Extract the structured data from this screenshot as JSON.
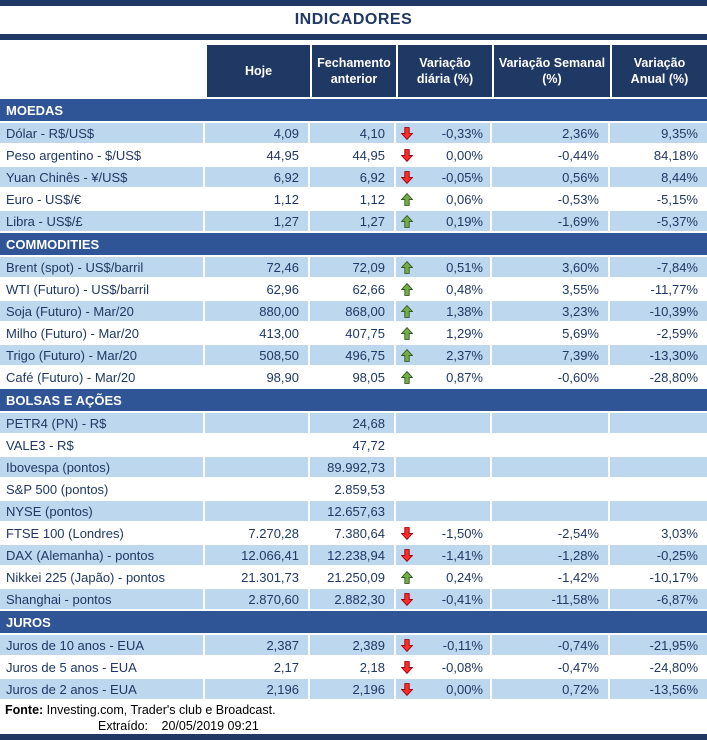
{
  "title": "INDICADORES",
  "columns": {
    "hoje": "Hoje",
    "fechamento": "Fechamento anterior",
    "variacao_diaria": "Variação diária (%)",
    "variacao_semanal": "Variação Semanal (%)",
    "variacao_anual": "Variação Anual (%)"
  },
  "sections": [
    {
      "name": "MOEDAS",
      "rows": [
        {
          "label": "Dólar - R$/US$",
          "hoje": "4,09",
          "fechamento": "4,10",
          "arrow": "down",
          "diaria": "-0,33%",
          "semanal": "2,36%",
          "anual": "9,35%"
        },
        {
          "label": "Peso argentino - $/US$",
          "hoje": "44,95",
          "fechamento": "44,95",
          "arrow": "down",
          "diaria": "0,00%",
          "semanal": "-0,44%",
          "anual": "84,18%"
        },
        {
          "label": "Yuan Chinês - ¥/US$",
          "hoje": "6,92",
          "fechamento": "6,92",
          "arrow": "down",
          "diaria": "-0,05%",
          "semanal": "0,56%",
          "anual": "8,44%"
        },
        {
          "label": "Euro - US$/€",
          "hoje": "1,12",
          "fechamento": "1,12",
          "arrow": "up",
          "diaria": "0,06%",
          "semanal": "-0,53%",
          "anual": "-5,15%"
        },
        {
          "label": "Libra - US$/£",
          "hoje": "1,27",
          "fechamento": "1,27",
          "arrow": "up",
          "diaria": "0,19%",
          "semanal": "-1,69%",
          "anual": "-5,37%"
        }
      ]
    },
    {
      "name": "COMMODITIES",
      "rows": [
        {
          "label": "Brent (spot) - US$/barril",
          "hoje": "72,46",
          "fechamento": "72,09",
          "arrow": "up",
          "diaria": "0,51%",
          "semanal": "3,60%",
          "anual": "-7,84%"
        },
        {
          "label": "WTI (Futuro) - US$/barril",
          "hoje": "62,96",
          "fechamento": "62,66",
          "arrow": "up",
          "diaria": "0,48%",
          "semanal": "3,55%",
          "anual": "-11,77%"
        },
        {
          "label": "Soja (Futuro) - Mar/20",
          "hoje": "880,00",
          "fechamento": "868,00",
          "arrow": "up",
          "diaria": "1,38%",
          "semanal": "3,23%",
          "anual": "-10,39%"
        },
        {
          "label": "Milho (Futuro) - Mar/20",
          "hoje": "413,00",
          "fechamento": "407,75",
          "arrow": "up",
          "diaria": "1,29%",
          "semanal": "5,69%",
          "anual": "-2,59%"
        },
        {
          "label": "Trigo (Futuro) - Mar/20",
          "hoje": "508,50",
          "fechamento": "496,75",
          "arrow": "up",
          "diaria": "2,37%",
          "semanal": "7,39%",
          "anual": "-13,30%"
        },
        {
          "label": "Café (Futuro) - Mar/20",
          "hoje": "98,90",
          "fechamento": "98,05",
          "arrow": "up",
          "diaria": "0,87%",
          "semanal": "-0,60%",
          "anual": "-28,80%"
        }
      ]
    },
    {
      "name": "BOLSAS E AÇÕES",
      "rows": [
        {
          "label": "PETR4 (PN) - R$",
          "hoje": "",
          "fechamento": "24,68",
          "arrow": "",
          "diaria": "",
          "semanal": "",
          "anual": ""
        },
        {
          "label": "VALE3 - R$",
          "hoje": "",
          "fechamento": "47,72",
          "arrow": "",
          "diaria": "",
          "semanal": "",
          "anual": ""
        },
        {
          "label": "Ibovespa (pontos)",
          "hoje": "",
          "fechamento": "89.992,73",
          "arrow": "",
          "diaria": "",
          "semanal": "",
          "anual": ""
        },
        {
          "label": "S&P 500 (pontos)",
          "hoje": "",
          "fechamento": "2.859,53",
          "arrow": "",
          "diaria": "",
          "semanal": "",
          "anual": ""
        },
        {
          "label": "NYSE (pontos)",
          "hoje": "",
          "fechamento": "12.657,63",
          "arrow": "",
          "diaria": "",
          "semanal": "",
          "anual": ""
        },
        {
          "label": "FTSE 100 (Londres)",
          "hoje": "7.270,28",
          "fechamento": "7.380,64",
          "arrow": "down",
          "diaria": "-1,50%",
          "semanal": "-2,54%",
          "anual": "3,03%"
        },
        {
          "label": "DAX (Alemanha) - pontos",
          "hoje": "12.066,41",
          "fechamento": "12.238,94",
          "arrow": "down",
          "diaria": "-1,41%",
          "semanal": "-1,28%",
          "anual": "-0,25%"
        },
        {
          "label": "Nikkei 225 (Japão) - pontos",
          "hoje": "21.301,73",
          "fechamento": "21.250,09",
          "arrow": "up",
          "diaria": "0,24%",
          "semanal": "-1,42%",
          "anual": "-10,17%"
        },
        {
          "label": "Shanghai - pontos",
          "hoje": "2.870,60",
          "fechamento": "2.882,30",
          "arrow": "down",
          "diaria": "-0,41%",
          "semanal": "-11,58%",
          "anual": "-6,87%"
        }
      ]
    },
    {
      "name": "JUROS",
      "rows": [
        {
          "label": "Juros de 10 anos - EUA",
          "hoje": "2,387",
          "fechamento": "2,389",
          "arrow": "down",
          "diaria": "-0,11%",
          "semanal": "-0,74%",
          "anual": "-21,95%"
        },
        {
          "label": "Juros de 5 anos - EUA",
          "hoje": "2,17",
          "fechamento": "2,18",
          "arrow": "down",
          "diaria": "-0,08%",
          "semanal": "-0,47%",
          "anual": "-24,80%"
        },
        {
          "label": "Juros de 2 anos - EUA",
          "hoje": "2,196",
          "fechamento": "2,196",
          "arrow": "down",
          "diaria": "0,00%",
          "semanal": "0,72%",
          "anual": "-13,56%"
        }
      ]
    }
  ],
  "footer": {
    "fonte_label": "Fonte:",
    "fonte_text": "Investing.com, Trader's club e Broadcast.",
    "extraido_label": "Extraído:",
    "extraido_value": "20/05/2019 09:21"
  },
  "colors": {
    "navy": "#1F3864",
    "section_blue": "#2F5597",
    "row_blue": "#BDD7EE",
    "text_navy": "#1F3864",
    "arrow_up_green": "#70AD47",
    "arrow_up_border": "#375623",
    "arrow_down_red": "#FF2B2B",
    "arrow_down_border": "#9C0006"
  }
}
